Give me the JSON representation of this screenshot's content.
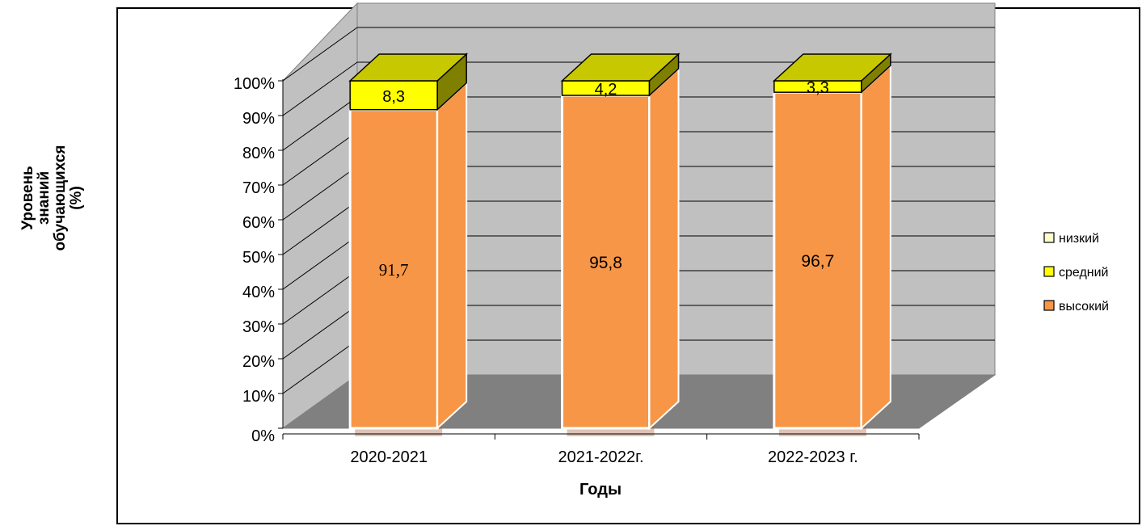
{
  "chart_data": {
    "type": "bar",
    "stacked": true,
    "three_d": true,
    "categories": [
      "2020-2021",
      "2021-2022г.",
      "2022-2023 г."
    ],
    "series": [
      {
        "name": "высокий",
        "values": [
          91.7,
          95.8,
          96.7
        ],
        "labels": [
          "91,7",
          "95,8",
          "96,7"
        ],
        "color": "#F79646"
      },
      {
        "name": "средний",
        "values": [
          8.3,
          4.2,
          3.3
        ],
        "labels": [
          "8,3",
          "4,2",
          "3,3"
        ],
        "color": "#FFFF00"
      },
      {
        "name": "низкий",
        "values": [
          0,
          0,
          0
        ],
        "color": "#FFFFCC"
      }
    ],
    "yticks": [
      "0%",
      "10%",
      "20%",
      "30%",
      "40%",
      "50%",
      "60%",
      "70%",
      "80%",
      "90%",
      "100%"
    ],
    "ylim": [
      0,
      100
    ],
    "xlabel": "Годы",
    "ylabel": "Уровень знаний обучающихся (%)",
    "legend_position": "right",
    "grid": true,
    "colors": {
      "wall": "#C0C0C0",
      "floor": "#808080",
      "gridline": "#000000"
    }
  }
}
